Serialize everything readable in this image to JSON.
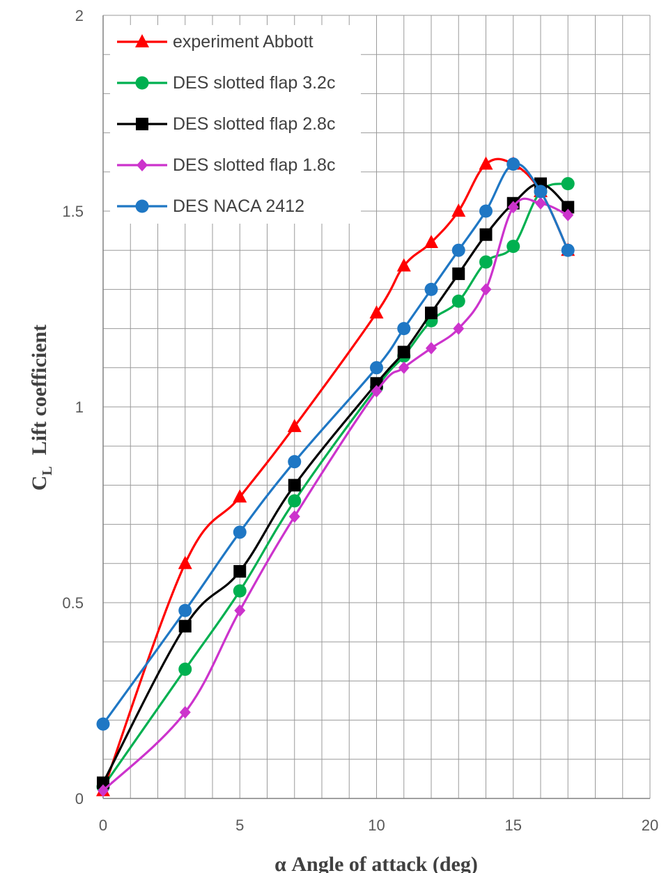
{
  "chart_data": {
    "type": "line",
    "xlabel": "α Angle of attack (deg)",
    "ylabel_symbol": "C",
    "ylabel_subscript": "L",
    "ylabel_text": "Lift coefficient",
    "xlim": [
      0,
      20
    ],
    "ylim": [
      0,
      2
    ],
    "x_ticks": [
      "0",
      "5",
      "10",
      "15",
      "20"
    ],
    "y_ticks": [
      "0",
      "0.5",
      "1",
      "1.5",
      "2"
    ],
    "minor_x_step": 1,
    "minor_y_step": 0.1,
    "grid": true,
    "legend_position": "top-left",
    "series": [
      {
        "name": "experiment Abbott",
        "color": "#ff0000",
        "marker": "triangle",
        "x": [
          0,
          3,
          5,
          7,
          10,
          11,
          12,
          13,
          14,
          15,
          16,
          17
        ],
        "y": [
          0.02,
          0.6,
          0.77,
          0.95,
          1.24,
          1.36,
          1.42,
          1.5,
          1.62,
          1.62,
          1.55,
          1.4
        ]
      },
      {
        "name": "DES slotted flap 3.2c",
        "color": "#00b050",
        "marker": "circle",
        "x": [
          0,
          3,
          5,
          7,
          10,
          11,
          12,
          13,
          14,
          15,
          16,
          17
        ],
        "y": [
          0.03,
          0.33,
          0.53,
          0.76,
          1.05,
          1.13,
          1.22,
          1.27,
          1.37,
          1.41,
          1.55,
          1.57
        ]
      },
      {
        "name": "DES slotted flap 2.8c",
        "color": "#000000",
        "marker": "square",
        "x": [
          0,
          3,
          5,
          7,
          10,
          11,
          12,
          13,
          14,
          15,
          16,
          17
        ],
        "y": [
          0.04,
          0.44,
          0.58,
          0.8,
          1.06,
          1.14,
          1.24,
          1.34,
          1.44,
          1.52,
          1.57,
          1.51
        ]
      },
      {
        "name": "DES slotted flap 1.8c",
        "color": "#cc33cc",
        "marker": "diamond",
        "x": [
          0,
          3,
          5,
          7,
          10,
          11,
          12,
          13,
          14,
          15,
          16,
          17
        ],
        "y": [
          0.02,
          0.22,
          0.48,
          0.72,
          1.04,
          1.1,
          1.15,
          1.2,
          1.3,
          1.51,
          1.52,
          1.49
        ]
      },
      {
        "name": "DES NACA 2412",
        "color": "#1f77c4",
        "marker": "circle",
        "x": [
          0,
          3,
          5,
          7,
          10,
          11,
          12,
          13,
          14,
          15,
          16,
          17
        ],
        "y": [
          0.19,
          0.48,
          0.68,
          0.86,
          1.1,
          1.2,
          1.3,
          1.4,
          1.5,
          1.62,
          1.55,
          1.4
        ]
      }
    ]
  }
}
